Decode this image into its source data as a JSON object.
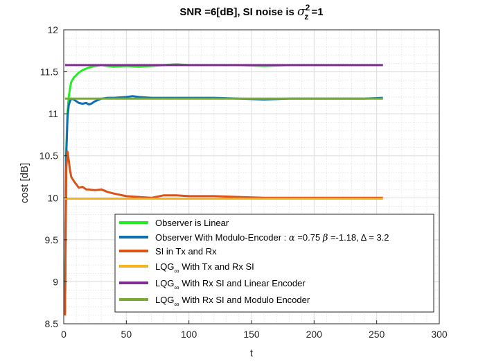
{
  "chart_data": {
    "type": "line",
    "title": "SNR =6[dB], SI noise is σ²z =1",
    "title_parts": {
      "prefix": "SNR =6[dB], SI noise is ",
      "sigma": "σ",
      "sup": "2",
      "sub": "z",
      "suffix": " =1"
    },
    "xlabel": "t",
    "ylabel": "cost [dB]",
    "xlim": [
      0,
      300
    ],
    "ylim": [
      8.5,
      12
    ],
    "xticks": [
      "0",
      "50",
      "100",
      "150",
      "200",
      "250",
      "300"
    ],
    "yticks": [
      "8.5",
      "9",
      "9.5",
      "10",
      "10.5",
      "11",
      "11.5",
      "12"
    ],
    "grid": true,
    "minor_grid": true,
    "legend_position": "bottom-right",
    "series": [
      {
        "name": "Observer is Linear",
        "color": "#22ee22",
        "x": [
          1,
          2,
          3,
          4,
          5,
          6,
          8,
          10,
          12,
          15,
          20,
          25,
          30,
          35,
          40,
          50,
          60,
          70,
          80,
          90,
          100,
          110,
          120,
          140,
          160,
          180,
          200,
          220,
          240,
          255
        ],
        "y": [
          8.62,
          10.55,
          11.0,
          11.2,
          11.3,
          11.38,
          11.43,
          11.46,
          11.49,
          11.52,
          11.55,
          11.57,
          11.58,
          11.57,
          11.56,
          11.57,
          11.56,
          11.57,
          11.58,
          11.59,
          11.58,
          11.58,
          11.58,
          11.58,
          11.57,
          11.58,
          11.58,
          11.58,
          11.58,
          11.58
        ]
      },
      {
        "name": "Observer With Modulo-Encoder : α =0.75 β =-1.18, Δ = 3.2",
        "legend_parts": {
          "prefix": "Observer With Modulo-Encoder : ",
          "alpha": "α",
          "alpha_val": " =0.75 ",
          "beta": "β",
          "beta_val": " =-1.18, ",
          "delta": "Δ",
          "delta_val": " = 3.2"
        },
        "color": "#0f6fb0",
        "x": [
          1,
          2,
          3,
          4,
          5,
          6,
          8,
          10,
          12,
          15,
          18,
          20,
          22,
          25,
          30,
          35,
          40,
          50,
          55,
          60,
          70,
          80,
          100,
          120,
          140,
          160,
          180,
          200,
          220,
          240,
          255
        ],
        "y": [
          8.62,
          10.5,
          10.95,
          11.1,
          11.15,
          11.18,
          11.17,
          11.15,
          11.13,
          11.12,
          11.13,
          11.11,
          11.12,
          11.15,
          11.18,
          11.19,
          11.19,
          11.2,
          11.21,
          11.2,
          11.19,
          11.19,
          11.19,
          11.19,
          11.18,
          11.17,
          11.18,
          11.18,
          11.18,
          11.18,
          11.19
        ]
      },
      {
        "name": "SI in Tx and Rx",
        "color": "#d95319",
        "x": [
          1,
          2,
          3,
          4,
          5,
          6,
          8,
          10,
          12,
          15,
          18,
          20,
          25,
          30,
          35,
          40,
          50,
          60,
          70,
          80,
          90,
          100,
          120,
          140,
          160,
          180,
          200,
          220,
          240,
          255
        ],
        "y": [
          8.6,
          10.35,
          10.55,
          10.45,
          10.33,
          10.25,
          10.2,
          10.16,
          10.12,
          10.13,
          10.1,
          10.1,
          10.09,
          10.1,
          10.07,
          10.05,
          10.02,
          10.01,
          10.0,
          10.03,
          10.03,
          10.02,
          10.02,
          10.01,
          10.0,
          10.0,
          10.0,
          10.0,
          10.0,
          10.0
        ]
      },
      {
        "name": "LQG∞ With Tx and Rx SI",
        "legend_parts": {
          "prefix": "LQG",
          "sub": "∞",
          "suffix": " With Tx and Rx SI"
        },
        "color": "#f5b21f",
        "x": [
          1,
          255
        ],
        "y": [
          9.99,
          9.99
        ]
      },
      {
        "name": "LQG∞ With Rx SI and Linear Encoder",
        "legend_parts": {
          "prefix": "LQG",
          "sub": "∞",
          "suffix": " With Rx SI and Linear Encoder"
        },
        "color": "#7e2f8e",
        "x": [
          1,
          255
        ],
        "y": [
          11.58,
          11.58
        ]
      },
      {
        "name": "LQG∞ With Rx SI and Modulo Encoder",
        "legend_parts": {
          "prefix": "LQG",
          "sub": "∞",
          "suffix": " With Rx SI and Modulo Encoder"
        },
        "color": "#77ac30",
        "x": [
          1,
          255
        ],
        "y": [
          11.18,
          11.18
        ]
      }
    ]
  }
}
